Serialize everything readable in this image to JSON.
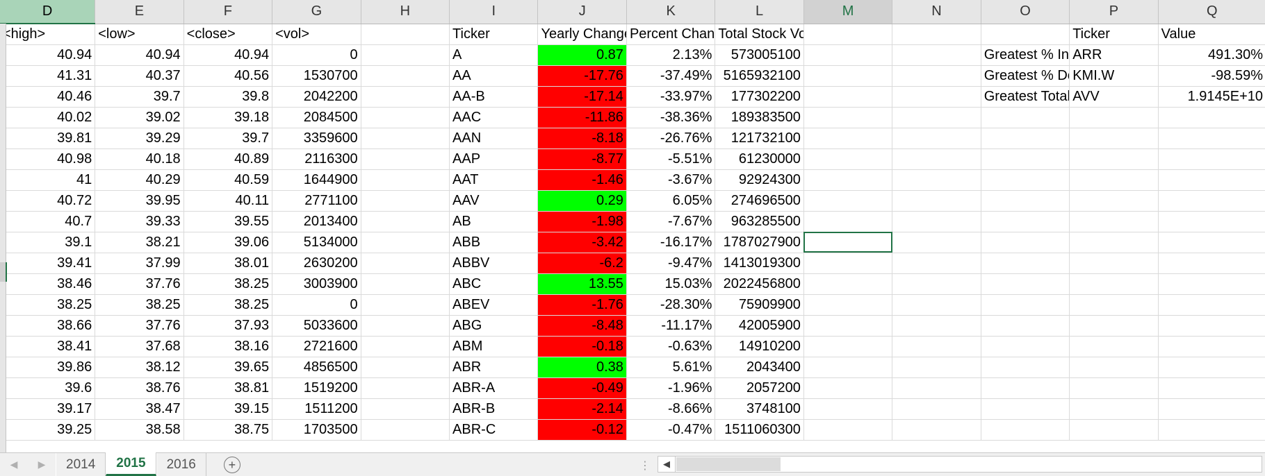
{
  "columns": [
    {
      "letter": "D",
      "state": "selected"
    },
    {
      "letter": "E",
      "state": ""
    },
    {
      "letter": "F",
      "state": ""
    },
    {
      "letter": "G",
      "state": ""
    },
    {
      "letter": "H",
      "state": ""
    },
    {
      "letter": "I",
      "state": ""
    },
    {
      "letter": "J",
      "state": ""
    },
    {
      "letter": "K",
      "state": ""
    },
    {
      "letter": "L",
      "state": ""
    },
    {
      "letter": "M",
      "state": "active"
    },
    {
      "letter": "N",
      "state": ""
    },
    {
      "letter": "O",
      "state": ""
    },
    {
      "letter": "P",
      "state": ""
    },
    {
      "letter": "Q",
      "state": ""
    }
  ],
  "header_row": [
    "<high>",
    "<low>",
    "<close>",
    "<vol>",
    "",
    "Ticker",
    "Yearly Change",
    "Percent Change",
    "Total Stock Volume",
    "",
    "",
    "",
    "Ticker",
    "Value"
  ],
  "rows": [
    [
      "40.94",
      "40.94",
      "40.94",
      "0",
      "",
      "A",
      "0.87",
      "2.13%",
      "573005100",
      "",
      "",
      "Greatest % Increase",
      "ARR",
      "491.30%"
    ],
    [
      "41.31",
      "40.37",
      "40.56",
      "1530700",
      "",
      "AA",
      "-17.76",
      "-37.49%",
      "5165932100",
      "",
      "",
      "Greatest % Decrease",
      "KMI.W",
      "-98.59%"
    ],
    [
      "40.46",
      "39.7",
      "39.8",
      "2042200",
      "",
      "AA-B",
      "-17.14",
      "-33.97%",
      "177302200",
      "",
      "",
      "Greatest Total Volume",
      "AVV",
      "1.9145E+10"
    ],
    [
      "40.02",
      "39.02",
      "39.18",
      "2084500",
      "",
      "AAC",
      "-11.86",
      "-38.36%",
      "189383500",
      "",
      "",
      "",
      "",
      ""
    ],
    [
      "39.81",
      "39.29",
      "39.7",
      "3359600",
      "",
      "AAN",
      "-8.18",
      "-26.76%",
      "121732100",
      "",
      "",
      "",
      "",
      ""
    ],
    [
      "40.98",
      "40.18",
      "40.89",
      "2116300",
      "",
      "AAP",
      "-8.77",
      "-5.51%",
      "61230000",
      "",
      "",
      "",
      "",
      ""
    ],
    [
      "41",
      "40.29",
      "40.59",
      "1644900",
      "",
      "AAT",
      "-1.46",
      "-3.67%",
      "92924300",
      "",
      "",
      "",
      "",
      ""
    ],
    [
      "40.72",
      "39.95",
      "40.11",
      "2771100",
      "",
      "AAV",
      "0.29",
      "6.05%",
      "274696500",
      "",
      "",
      "",
      "",
      ""
    ],
    [
      "40.7",
      "39.33",
      "39.55",
      "2013400",
      "",
      "AB",
      "-1.98",
      "-7.67%",
      "963285500",
      "",
      "",
      "",
      "",
      ""
    ],
    [
      "39.1",
      "38.21",
      "39.06",
      "5134000",
      "",
      "ABB",
      "-3.42",
      "-16.17%",
      "1787027900",
      "",
      "",
      "",
      "",
      ""
    ],
    [
      "39.41",
      "37.99",
      "38.01",
      "2630200",
      "",
      "ABBV",
      "-6.2",
      "-9.47%",
      "1413019300",
      "",
      "",
      "",
      "",
      ""
    ],
    [
      "38.46",
      "37.76",
      "38.25",
      "3003900",
      "",
      "ABC",
      "13.55",
      "15.03%",
      "2022456800",
      "",
      "",
      "",
      "",
      ""
    ],
    [
      "38.25",
      "38.25",
      "38.25",
      "0",
      "",
      "ABEV",
      "-1.76",
      "-28.30%",
      "75909900",
      "",
      "",
      "",
      "",
      ""
    ],
    [
      "38.66",
      "37.76",
      "37.93",
      "5033600",
      "",
      "ABG",
      "-8.48",
      "-11.17%",
      "42005900",
      "",
      "",
      "",
      "",
      ""
    ],
    [
      "38.41",
      "37.68",
      "38.16",
      "2721600",
      "",
      "ABM",
      "-0.18",
      "-0.63%",
      "14910200",
      "",
      "",
      "",
      "",
      ""
    ],
    [
      "39.86",
      "38.12",
      "39.65",
      "4856500",
      "",
      "ABR",
      "0.38",
      "5.61%",
      "2043400",
      "",
      "",
      "",
      "",
      ""
    ],
    [
      "39.6",
      "38.76",
      "38.81",
      "1519200",
      "",
      "ABR-A",
      "-0.49",
      "-1.96%",
      "2057200",
      "",
      "",
      "",
      "",
      ""
    ],
    [
      "39.17",
      "38.47",
      "39.15",
      "1511200",
      "",
      "ABR-B",
      "-2.14",
      "-8.66%",
      "3748100",
      "",
      "",
      "",
      "",
      ""
    ],
    [
      "39.25",
      "38.58",
      "38.75",
      "1703500",
      "",
      "ABR-C",
      "-0.12",
      "-0.47%",
      "1511060300",
      "",
      "",
      "",
      "",
      ""
    ]
  ],
  "selected_cell": "M11",
  "sheet_tabs": [
    {
      "label": "2014",
      "active": false
    },
    {
      "label": "2015",
      "active": true
    },
    {
      "label": "2016",
      "active": false
    }
  ],
  "icons": {
    "prev_sheet": "chevron-left-icon",
    "next_sheet": "chevron-right-icon",
    "add_sheet": "plus-circle-icon",
    "scroll_left": "triangle-left-icon"
  },
  "colors": {
    "positive": "#00ff00",
    "negative": "#ff0000",
    "accent": "#217346"
  }
}
